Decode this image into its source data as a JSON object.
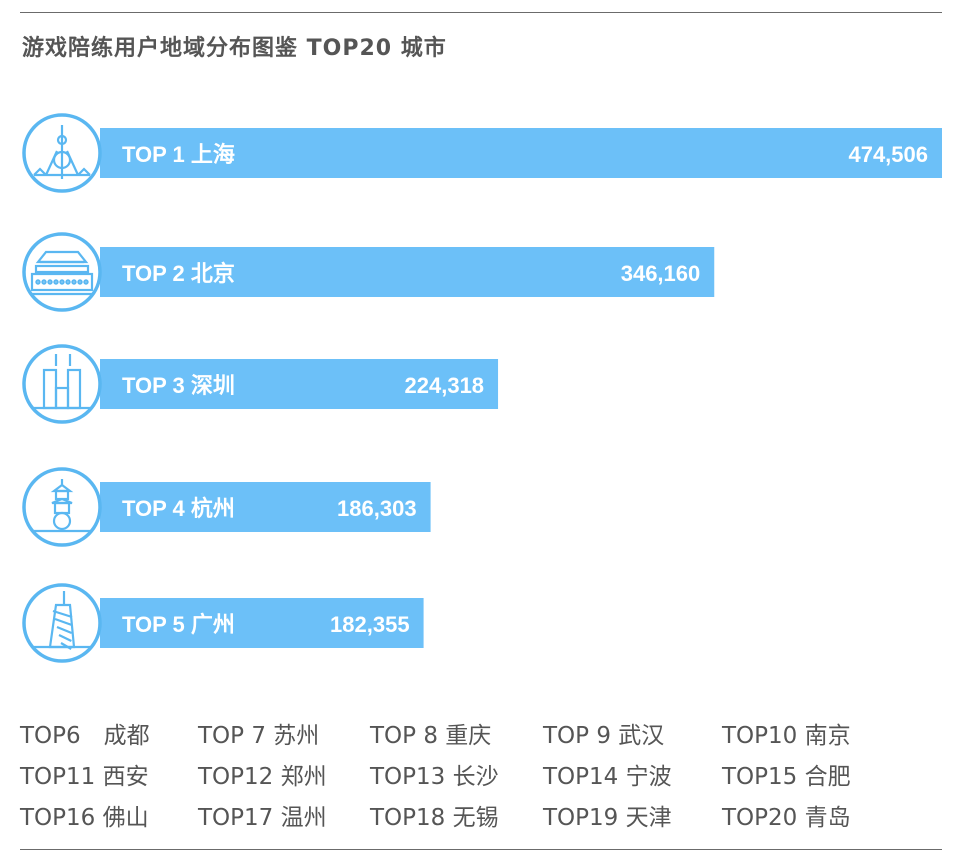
{
  "title": "游戏陪练用户地域分布图鉴 TOP20 城市",
  "colors": {
    "bar": "#6cc0f8",
    "icon_stroke": "#5ab7f1",
    "bar_text": "#ffffff",
    "list_text": "#555555"
  },
  "chart_data": {
    "type": "bar",
    "orientation": "horizontal",
    "categories": [
      "上海",
      "北京",
      "深圳",
      "杭州",
      "广州"
    ],
    "rank_labels": [
      "TOP 1",
      "TOP 2",
      "TOP 3",
      "TOP 4",
      "TOP 5"
    ],
    "values": [
      474506,
      346160,
      224318,
      186303,
      182355
    ],
    "value_labels": [
      "474,506",
      "346,160",
      "224,318",
      "186,303",
      "182,355"
    ],
    "icons": [
      "oriental-pearl-tower-icon",
      "tiananmen-icon",
      "twin-towers-icon",
      "pagoda-icon",
      "canton-tower-icon"
    ]
  },
  "ranking_list": [
    "TOP6　成都",
    "TOP 7  苏州",
    "TOP 8  重庆",
    "TOP 9  武汉",
    "TOP10 南京",
    "TOP11 西安",
    "TOP12 郑州",
    "TOP13 长沙",
    "TOP14 宁波",
    "TOP15 合肥",
    "TOP16 佛山",
    "TOP17 温州",
    "TOP18 无锡",
    "TOP19 天津",
    "TOP20 青岛"
  ]
}
